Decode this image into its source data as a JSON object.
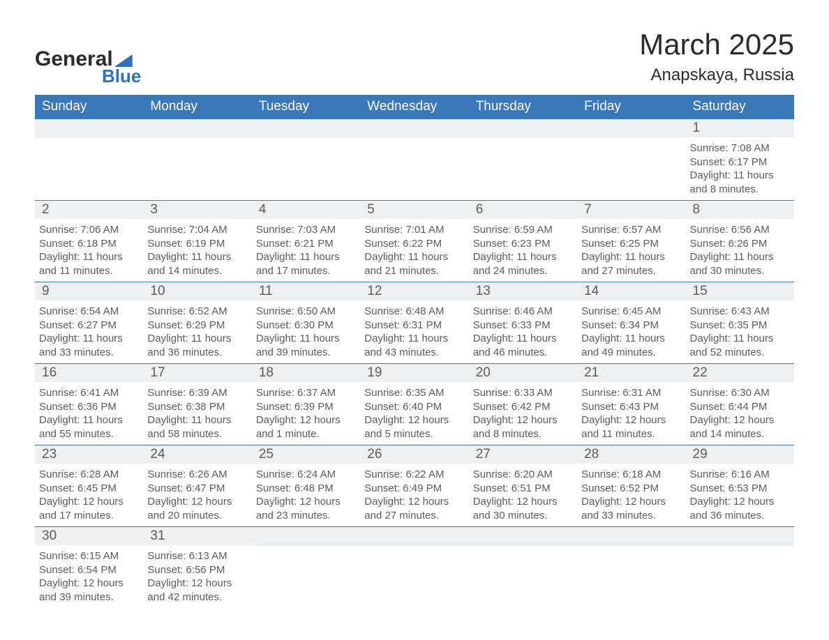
{
  "logo": {
    "text_general": "General",
    "text_blue": "Blue",
    "accent_color": "#2f71b8"
  },
  "header": {
    "title": "March 2025",
    "location": "Anapskaya, Russia"
  },
  "colors": {
    "header_bg": "#3b78b9",
    "header_text": "#ffffff",
    "row_border": "#3b78b9",
    "day_bar_bg": "#edeff0",
    "text": "#5c5c5c"
  },
  "weekdays": [
    "Sunday",
    "Monday",
    "Tuesday",
    "Wednesday",
    "Thursday",
    "Friday",
    "Saturday"
  ],
  "weeks": [
    [
      {
        "blank": true
      },
      {
        "blank": true
      },
      {
        "blank": true
      },
      {
        "blank": true
      },
      {
        "blank": true
      },
      {
        "blank": true
      },
      {
        "day": "1",
        "sunrise": "Sunrise: 7:08 AM",
        "sunset": "Sunset: 6:17 PM",
        "daylight": "Daylight: 11 hours and 8 minutes."
      }
    ],
    [
      {
        "day": "2",
        "sunrise": "Sunrise: 7:06 AM",
        "sunset": "Sunset: 6:18 PM",
        "daylight": "Daylight: 11 hours and 11 minutes."
      },
      {
        "day": "3",
        "sunrise": "Sunrise: 7:04 AM",
        "sunset": "Sunset: 6:19 PM",
        "daylight": "Daylight: 11 hours and 14 minutes."
      },
      {
        "day": "4",
        "sunrise": "Sunrise: 7:03 AM",
        "sunset": "Sunset: 6:21 PM",
        "daylight": "Daylight: 11 hours and 17 minutes."
      },
      {
        "day": "5",
        "sunrise": "Sunrise: 7:01 AM",
        "sunset": "Sunset: 6:22 PM",
        "daylight": "Daylight: 11 hours and 21 minutes."
      },
      {
        "day": "6",
        "sunrise": "Sunrise: 6:59 AM",
        "sunset": "Sunset: 6:23 PM",
        "daylight": "Daylight: 11 hours and 24 minutes."
      },
      {
        "day": "7",
        "sunrise": "Sunrise: 6:57 AM",
        "sunset": "Sunset: 6:25 PM",
        "daylight": "Daylight: 11 hours and 27 minutes."
      },
      {
        "day": "8",
        "sunrise": "Sunrise: 6:56 AM",
        "sunset": "Sunset: 6:26 PM",
        "daylight": "Daylight: 11 hours and 30 minutes."
      }
    ],
    [
      {
        "day": "9",
        "sunrise": "Sunrise: 6:54 AM",
        "sunset": "Sunset: 6:27 PM",
        "daylight": "Daylight: 11 hours and 33 minutes."
      },
      {
        "day": "10",
        "sunrise": "Sunrise: 6:52 AM",
        "sunset": "Sunset: 6:29 PM",
        "daylight": "Daylight: 11 hours and 36 minutes."
      },
      {
        "day": "11",
        "sunrise": "Sunrise: 6:50 AM",
        "sunset": "Sunset: 6:30 PM",
        "daylight": "Daylight: 11 hours and 39 minutes."
      },
      {
        "day": "12",
        "sunrise": "Sunrise: 6:48 AM",
        "sunset": "Sunset: 6:31 PM",
        "daylight": "Daylight: 11 hours and 43 minutes."
      },
      {
        "day": "13",
        "sunrise": "Sunrise: 6:46 AM",
        "sunset": "Sunset: 6:33 PM",
        "daylight": "Daylight: 11 hours and 46 minutes."
      },
      {
        "day": "14",
        "sunrise": "Sunrise: 6:45 AM",
        "sunset": "Sunset: 6:34 PM",
        "daylight": "Daylight: 11 hours and 49 minutes."
      },
      {
        "day": "15",
        "sunrise": "Sunrise: 6:43 AM",
        "sunset": "Sunset: 6:35 PM",
        "daylight": "Daylight: 11 hours and 52 minutes."
      }
    ],
    [
      {
        "day": "16",
        "sunrise": "Sunrise: 6:41 AM",
        "sunset": "Sunset: 6:36 PM",
        "daylight": "Daylight: 11 hours and 55 minutes."
      },
      {
        "day": "17",
        "sunrise": "Sunrise: 6:39 AM",
        "sunset": "Sunset: 6:38 PM",
        "daylight": "Daylight: 11 hours and 58 minutes."
      },
      {
        "day": "18",
        "sunrise": "Sunrise: 6:37 AM",
        "sunset": "Sunset: 6:39 PM",
        "daylight": "Daylight: 12 hours and 1 minute."
      },
      {
        "day": "19",
        "sunrise": "Sunrise: 6:35 AM",
        "sunset": "Sunset: 6:40 PM",
        "daylight": "Daylight: 12 hours and 5 minutes."
      },
      {
        "day": "20",
        "sunrise": "Sunrise: 6:33 AM",
        "sunset": "Sunset: 6:42 PM",
        "daylight": "Daylight: 12 hours and 8 minutes."
      },
      {
        "day": "21",
        "sunrise": "Sunrise: 6:31 AM",
        "sunset": "Sunset: 6:43 PM",
        "daylight": "Daylight: 12 hours and 11 minutes."
      },
      {
        "day": "22",
        "sunrise": "Sunrise: 6:30 AM",
        "sunset": "Sunset: 6:44 PM",
        "daylight": "Daylight: 12 hours and 14 minutes."
      }
    ],
    [
      {
        "day": "23",
        "sunrise": "Sunrise: 6:28 AM",
        "sunset": "Sunset: 6:45 PM",
        "daylight": "Daylight: 12 hours and 17 minutes."
      },
      {
        "day": "24",
        "sunrise": "Sunrise: 6:26 AM",
        "sunset": "Sunset: 6:47 PM",
        "daylight": "Daylight: 12 hours and 20 minutes."
      },
      {
        "day": "25",
        "sunrise": "Sunrise: 6:24 AM",
        "sunset": "Sunset: 6:48 PM",
        "daylight": "Daylight: 12 hours and 23 minutes."
      },
      {
        "day": "26",
        "sunrise": "Sunrise: 6:22 AM",
        "sunset": "Sunset: 6:49 PM",
        "daylight": "Daylight: 12 hours and 27 minutes."
      },
      {
        "day": "27",
        "sunrise": "Sunrise: 6:20 AM",
        "sunset": "Sunset: 6:51 PM",
        "daylight": "Daylight: 12 hours and 30 minutes."
      },
      {
        "day": "28",
        "sunrise": "Sunrise: 6:18 AM",
        "sunset": "Sunset: 6:52 PM",
        "daylight": "Daylight: 12 hours and 33 minutes."
      },
      {
        "day": "29",
        "sunrise": "Sunrise: 6:16 AM",
        "sunset": "Sunset: 6:53 PM",
        "daylight": "Daylight: 12 hours and 36 minutes."
      }
    ],
    [
      {
        "day": "30",
        "sunrise": "Sunrise: 6:15 AM",
        "sunset": "Sunset: 6:54 PM",
        "daylight": "Daylight: 12 hours and 39 minutes."
      },
      {
        "day": "31",
        "sunrise": "Sunrise: 6:13 AM",
        "sunset": "Sunset: 6:56 PM",
        "daylight": "Daylight: 12 hours and 42 minutes."
      },
      {
        "blank": true
      },
      {
        "blank": true
      },
      {
        "blank": true
      },
      {
        "blank": true
      },
      {
        "blank": true
      }
    ]
  ]
}
